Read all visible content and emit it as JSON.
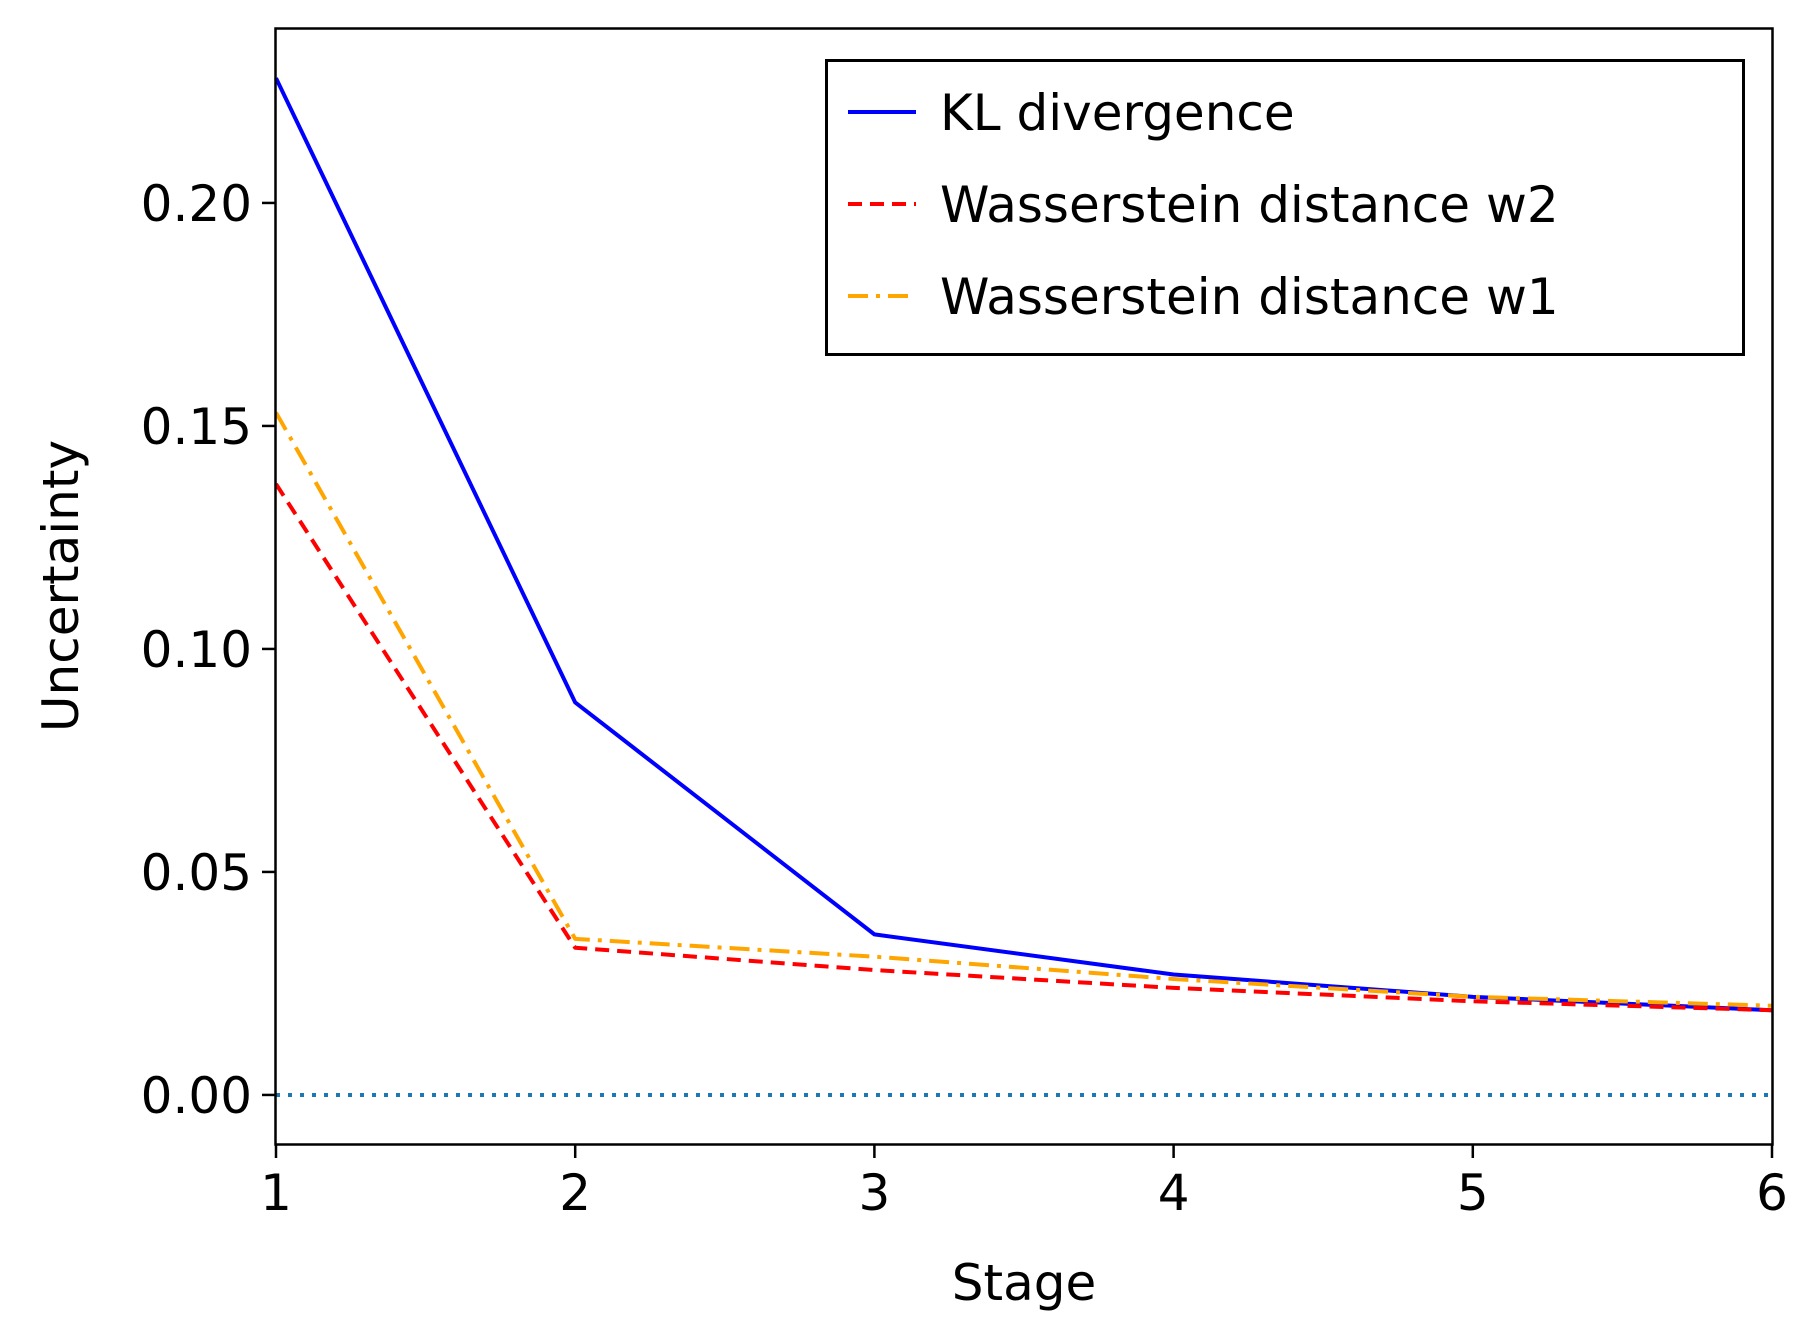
{
  "chart_data": {
    "type": "line",
    "title": "",
    "xlabel": "Stage",
    "ylabel": "Uncertainty",
    "x": [
      1,
      2,
      3,
      4,
      5,
      6
    ],
    "xlim": [
      1,
      6
    ],
    "ylim": [
      -0.011,
      0.239
    ],
    "xticks": [
      "1",
      "2",
      "3",
      "4",
      "5",
      "6"
    ],
    "yticks": [
      "0.00",
      "0.05",
      "0.10",
      "0.15",
      "0.20"
    ],
    "grid": false,
    "legend_position": "top-right",
    "series": [
      {
        "name": "KL divergence",
        "style": "solid",
        "color": "#0000ff",
        "values": [
          0.228,
          0.088,
          0.036,
          0.027,
          0.022,
          0.019
        ]
      },
      {
        "name": "Wasserstein distance w2",
        "style": "dashed",
        "color": "#ff0000",
        "values": [
          0.137,
          0.033,
          0.028,
          0.024,
          0.021,
          0.019
        ]
      },
      {
        "name": "Wasserstein distance w1",
        "style": "dashdot",
        "color": "#ffa500",
        "values": [
          0.153,
          0.035,
          0.031,
          0.026,
          0.022,
          0.02
        ]
      }
    ],
    "reference_line": {
      "y": 0.0,
      "style": "dotted",
      "color": "#1f77b4"
    }
  }
}
